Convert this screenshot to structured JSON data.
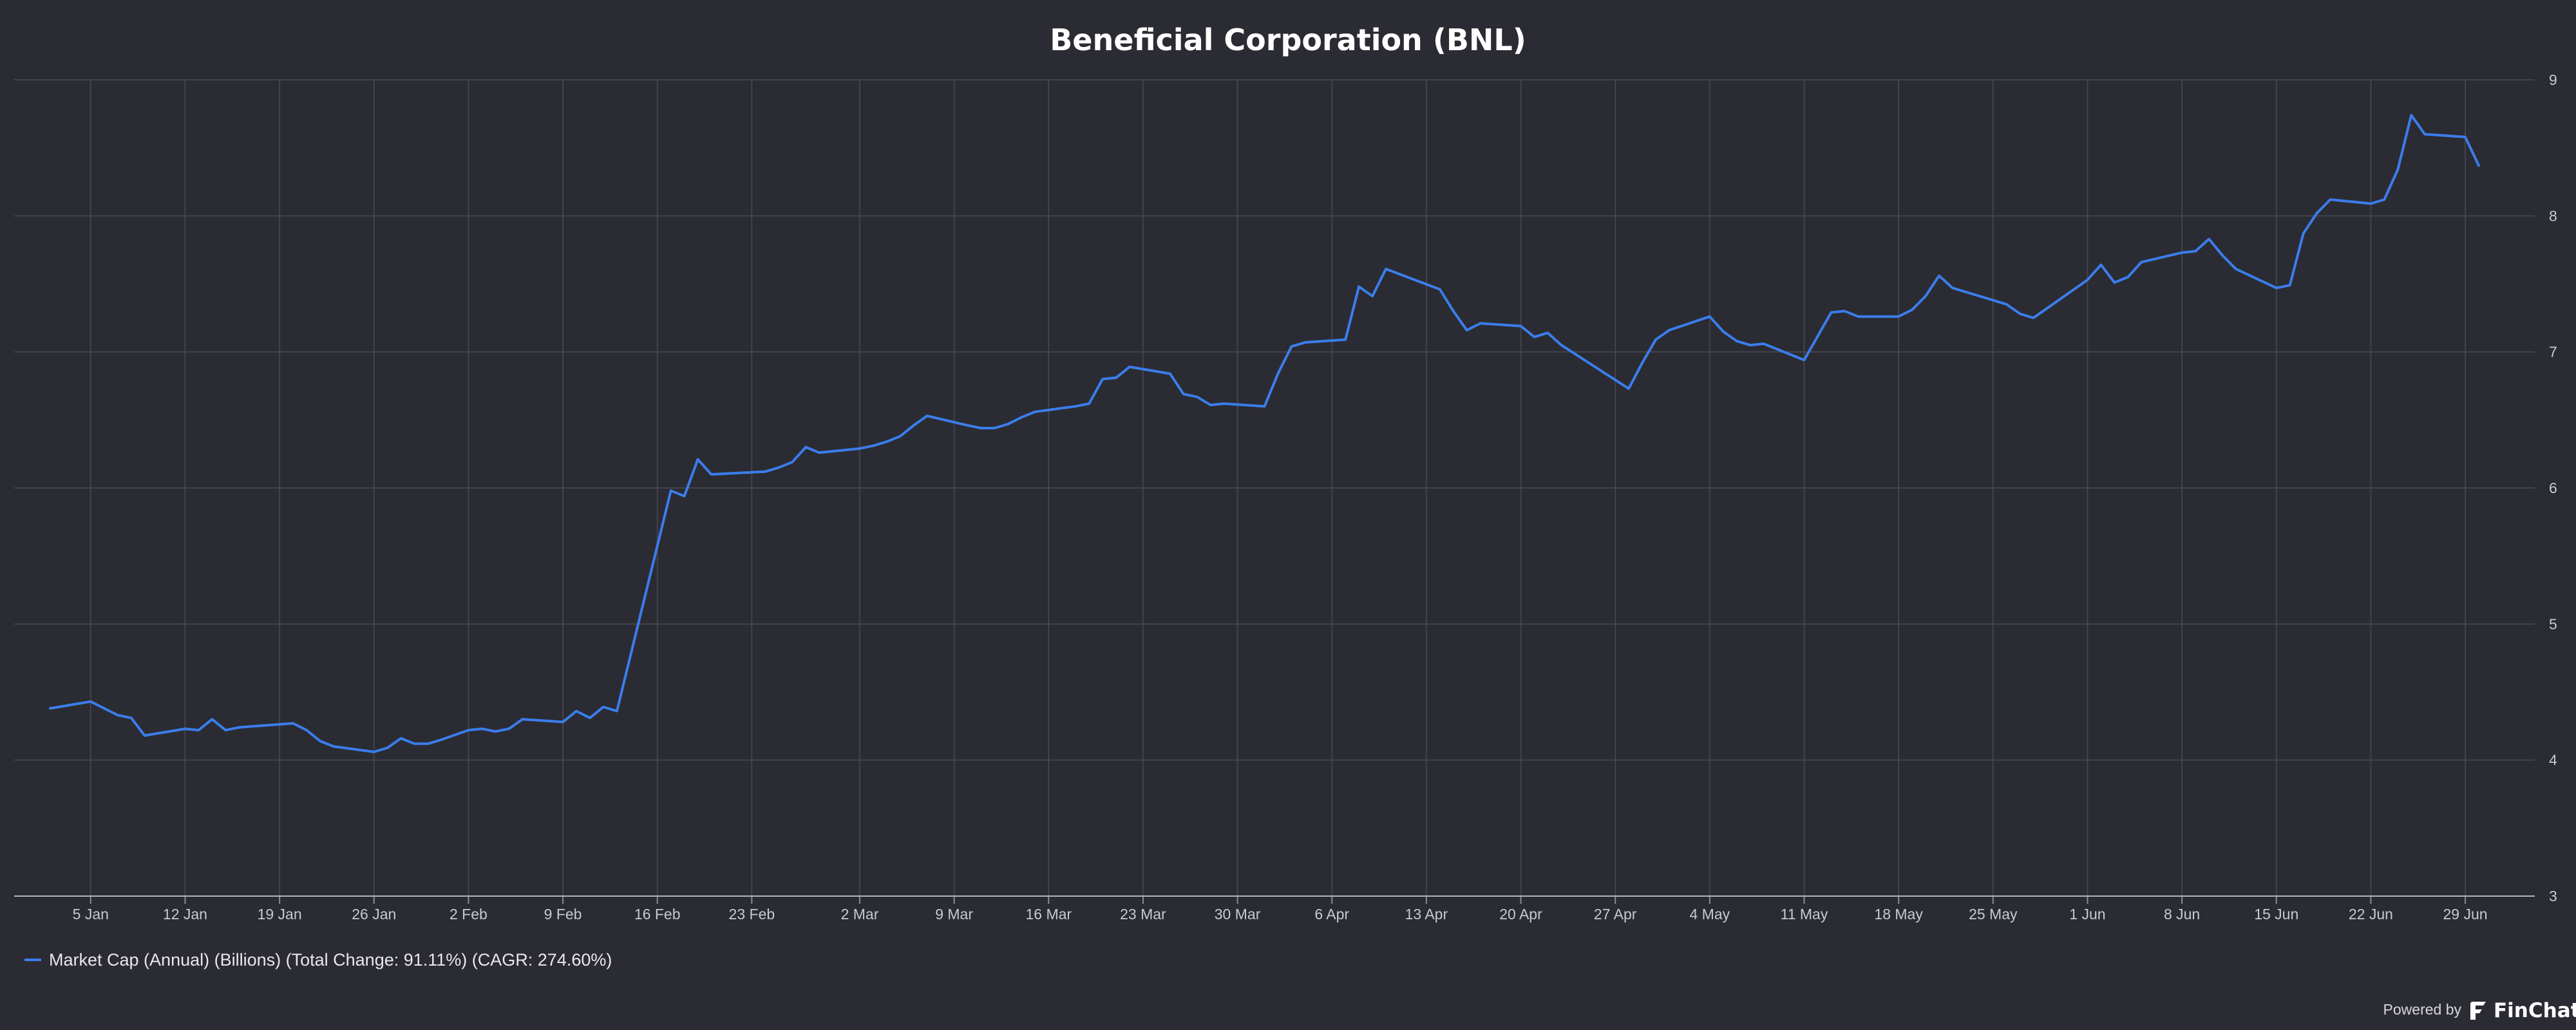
{
  "chart_data": {
    "type": "line",
    "title": "Beneficial Corporation (BNL)",
    "xlabel": "",
    "ylabel": "",
    "x_start": "2020-01-01",
    "x_end": "2020-06-30",
    "ylim": [
      3,
      9
    ],
    "yticks": [
      "3",
      "4",
      "5",
      "6",
      "7",
      "8",
      "9"
    ],
    "y_axis_position": "right",
    "grid": true,
    "xticks": [
      {
        "date": "2020-01-05",
        "label": "5 Jan"
      },
      {
        "date": "2020-01-12",
        "label": "12 Jan"
      },
      {
        "date": "2020-01-19",
        "label": "19 Jan"
      },
      {
        "date": "2020-01-26",
        "label": "26 Jan"
      },
      {
        "date": "2020-02-02",
        "label": "2 Feb"
      },
      {
        "date": "2020-02-09",
        "label": "9 Feb"
      },
      {
        "date": "2020-02-16",
        "label": "16 Feb"
      },
      {
        "date": "2020-02-23",
        "label": "23 Feb"
      },
      {
        "date": "2020-03-02",
        "label": "2 Mar"
      },
      {
        "date": "2020-03-09",
        "label": "9 Mar"
      },
      {
        "date": "2020-03-16",
        "label": "16 Mar"
      },
      {
        "date": "2020-03-23",
        "label": "23 Mar"
      },
      {
        "date": "2020-03-30",
        "label": "30 Mar"
      },
      {
        "date": "2020-04-06",
        "label": "6 Apr"
      },
      {
        "date": "2020-04-13",
        "label": "13 Apr"
      },
      {
        "date": "2020-04-20",
        "label": "20 Apr"
      },
      {
        "date": "2020-04-27",
        "label": "27 Apr"
      },
      {
        "date": "2020-05-04",
        "label": "4 May"
      },
      {
        "date": "2020-05-11",
        "label": "11 May"
      },
      {
        "date": "2020-05-18",
        "label": "18 May"
      },
      {
        "date": "2020-05-25",
        "label": "25 May"
      },
      {
        "date": "2020-06-01",
        "label": "1 Jun"
      },
      {
        "date": "2020-06-08",
        "label": "8 Jun"
      },
      {
        "date": "2020-06-15",
        "label": "15 Jun"
      },
      {
        "date": "2020-06-22",
        "label": "22 Jun"
      },
      {
        "date": "2020-06-29",
        "label": "29 Jun"
      }
    ],
    "legend_position": "bottom-left",
    "series": [
      {
        "name": "Market Cap (Annual) (Billions) (Total Change: 91.11%) (CAGR: 274.60%)",
        "color": "#3b7dea",
        "points": [
          [
            "2020-01-02",
            4.38
          ],
          [
            "2020-01-05",
            4.43
          ],
          [
            "2020-01-06",
            4.38
          ],
          [
            "2020-01-07",
            4.33
          ],
          [
            "2020-01-08",
            4.31
          ],
          [
            "2020-01-09",
            4.18
          ],
          [
            "2020-01-12",
            4.23
          ],
          [
            "2020-01-13",
            4.22
          ],
          [
            "2020-01-14",
            4.3
          ],
          [
            "2020-01-15",
            4.22
          ],
          [
            "2020-01-16",
            4.24
          ],
          [
            "2020-01-20",
            4.27
          ],
          [
            "2020-01-21",
            4.22
          ],
          [
            "2020-01-22",
            4.14
          ],
          [
            "2020-01-23",
            4.1
          ],
          [
            "2020-01-26",
            4.06
          ],
          [
            "2020-01-27",
            4.09
          ],
          [
            "2020-01-28",
            4.16
          ],
          [
            "2020-01-29",
            4.12
          ],
          [
            "2020-01-30",
            4.12
          ],
          [
            "2020-01-31",
            4.15
          ],
          [
            "2020-02-02",
            4.22
          ],
          [
            "2020-02-03",
            4.23
          ],
          [
            "2020-02-04",
            4.21
          ],
          [
            "2020-02-05",
            4.23
          ],
          [
            "2020-02-06",
            4.3
          ],
          [
            "2020-02-09",
            4.28
          ],
          [
            "2020-02-10",
            4.36
          ],
          [
            "2020-02-11",
            4.31
          ],
          [
            "2020-02-12",
            4.39
          ],
          [
            "2020-02-13",
            4.36
          ],
          [
            "2020-02-17",
            5.98
          ],
          [
            "2020-02-18",
            5.94
          ],
          [
            "2020-02-19",
            6.21
          ],
          [
            "2020-02-20",
            6.1
          ],
          [
            "2020-02-24",
            6.12
          ],
          [
            "2020-02-25",
            6.15
          ],
          [
            "2020-02-26",
            6.19
          ],
          [
            "2020-02-27",
            6.3
          ],
          [
            "2020-02-28",
            6.26
          ],
          [
            "2020-03-02",
            6.29
          ],
          [
            "2020-03-03",
            6.31
          ],
          [
            "2020-03-04",
            6.34
          ],
          [
            "2020-03-05",
            6.38
          ],
          [
            "2020-03-06",
            6.46
          ],
          [
            "2020-03-07",
            6.53
          ],
          [
            "2020-03-10",
            6.46
          ],
          [
            "2020-03-11",
            6.44
          ],
          [
            "2020-03-12",
            6.44
          ],
          [
            "2020-03-13",
            6.47
          ],
          [
            "2020-03-14",
            6.52
          ],
          [
            "2020-03-15",
            6.56
          ],
          [
            "2020-03-18",
            6.6
          ],
          [
            "2020-03-19",
            6.62
          ],
          [
            "2020-03-20",
            6.8
          ],
          [
            "2020-03-21",
            6.81
          ],
          [
            "2020-03-22",
            6.89
          ],
          [
            "2020-03-25",
            6.84
          ],
          [
            "2020-03-26",
            6.69
          ],
          [
            "2020-03-27",
            6.67
          ],
          [
            "2020-03-28",
            6.61
          ],
          [
            "2020-03-29",
            6.62
          ],
          [
            "2020-04-01",
            6.6
          ],
          [
            "2020-04-02",
            6.84
          ],
          [
            "2020-04-03",
            7.04
          ],
          [
            "2020-04-04",
            7.07
          ],
          [
            "2020-04-07",
            7.09
          ],
          [
            "2020-04-08",
            7.48
          ],
          [
            "2020-04-09",
            7.41
          ],
          [
            "2020-04-10",
            7.61
          ],
          [
            "2020-04-14",
            7.46
          ],
          [
            "2020-04-15",
            7.3
          ],
          [
            "2020-04-16",
            7.16
          ],
          [
            "2020-04-17",
            7.21
          ],
          [
            "2020-04-20",
            7.19
          ],
          [
            "2020-04-21",
            7.11
          ],
          [
            "2020-04-22",
            7.14
          ],
          [
            "2020-04-23",
            7.05
          ],
          [
            "2020-04-28",
            6.73
          ],
          [
            "2020-04-29",
            6.92
          ],
          [
            "2020-04-30",
            7.09
          ],
          [
            "2020-05-01",
            7.16
          ],
          [
            "2020-05-04",
            7.26
          ],
          [
            "2020-05-05",
            7.15
          ],
          [
            "2020-05-06",
            7.08
          ],
          [
            "2020-05-07",
            7.05
          ],
          [
            "2020-05-08",
            7.06
          ],
          [
            "2020-05-11",
            6.94
          ],
          [
            "2020-05-13",
            7.29
          ],
          [
            "2020-05-14",
            7.3
          ],
          [
            "2020-05-15",
            7.26
          ],
          [
            "2020-05-18",
            7.26
          ],
          [
            "2020-05-19",
            7.31
          ],
          [
            "2020-05-20",
            7.41
          ],
          [
            "2020-05-21",
            7.56
          ],
          [
            "2020-05-22",
            7.47
          ],
          [
            "2020-05-26",
            7.35
          ],
          [
            "2020-05-27",
            7.28
          ],
          [
            "2020-05-28",
            7.25
          ],
          [
            "2020-05-29",
            7.32
          ],
          [
            "2020-06-01",
            7.53
          ],
          [
            "2020-06-02",
            7.64
          ],
          [
            "2020-06-03",
            7.51
          ],
          [
            "2020-06-04",
            7.55
          ],
          [
            "2020-06-05",
            7.66
          ],
          [
            "2020-06-08",
            7.73
          ],
          [
            "2020-06-09",
            7.74
          ],
          [
            "2020-06-10",
            7.83
          ],
          [
            "2020-06-11",
            7.71
          ],
          [
            "2020-06-12",
            7.61
          ],
          [
            "2020-06-15",
            7.47
          ],
          [
            "2020-06-16",
            7.49
          ],
          [
            "2020-06-17",
            7.87
          ],
          [
            "2020-06-18",
            8.02
          ],
          [
            "2020-06-19",
            8.12
          ],
          [
            "2020-06-22",
            8.09
          ],
          [
            "2020-06-23",
            8.12
          ],
          [
            "2020-06-24",
            8.34
          ],
          [
            "2020-06-25",
            8.74
          ],
          [
            "2020-06-26",
            8.6
          ],
          [
            "2020-06-29",
            8.58
          ],
          [
            "2020-06-30",
            8.37
          ]
        ]
      }
    ]
  },
  "branding": {
    "powered_by": "Powered by",
    "name": "FinChat"
  }
}
